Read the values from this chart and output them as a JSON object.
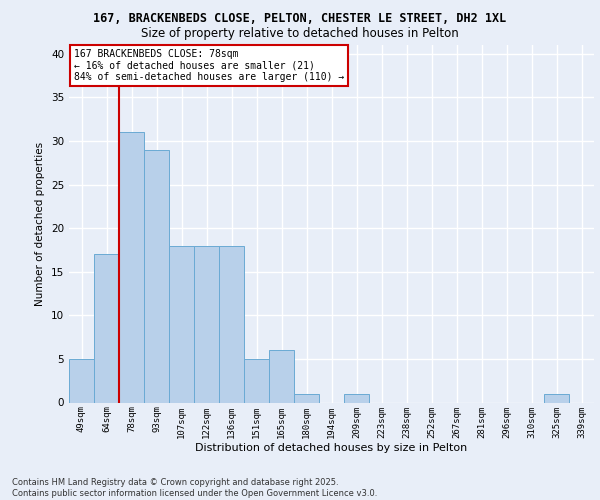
{
  "title1": "167, BRACKENBEDS CLOSE, PELTON, CHESTER LE STREET, DH2 1XL",
  "title2": "Size of property relative to detached houses in Pelton",
  "xlabel": "Distribution of detached houses by size in Pelton",
  "ylabel": "Number of detached properties",
  "categories": [
    "49sqm",
    "64sqm",
    "78sqm",
    "93sqm",
    "107sqm",
    "122sqm",
    "136sqm",
    "151sqm",
    "165sqm",
    "180sqm",
    "194sqm",
    "209sqm",
    "223sqm",
    "238sqm",
    "252sqm",
    "267sqm",
    "281sqm",
    "296sqm",
    "310sqm",
    "325sqm",
    "339sqm"
  ],
  "values": [
    5,
    17,
    31,
    29,
    18,
    18,
    18,
    5,
    6,
    1,
    0,
    1,
    0,
    0,
    0,
    0,
    0,
    0,
    0,
    1,
    0
  ],
  "bar_color": "#b8d0ea",
  "bar_edge_color": "#6aaad4",
  "highlight_line_index": 2,
  "highlight_color": "#cc0000",
  "annotation_text": "167 BRACKENBEDS CLOSE: 78sqm\n← 16% of detached houses are smaller (21)\n84% of semi-detached houses are larger (110) →",
  "annotation_box_color": "#ffffff",
  "annotation_box_edge": "#cc0000",
  "ylim": [
    0,
    41
  ],
  "yticks": [
    0,
    5,
    10,
    15,
    20,
    25,
    30,
    35,
    40
  ],
  "background_color": "#e8eef8",
  "grid_color": "#ffffff",
  "footer": "Contains HM Land Registry data © Crown copyright and database right 2025.\nContains public sector information licensed under the Open Government Licence v3.0."
}
